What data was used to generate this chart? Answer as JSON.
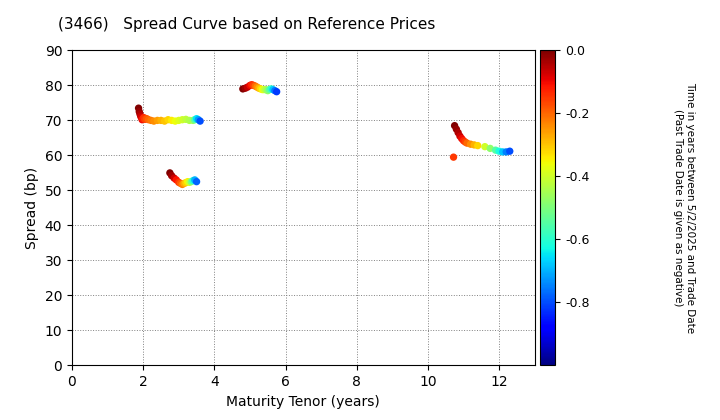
{
  "title": "(3466)   Spread Curve based on Reference Prices",
  "xlabel": "Maturity Tenor (years)",
  "ylabel": "Spread (bp)",
  "colorbar_label": "Time in years between 5/2/2025 and Trade Date\n(Past Trade Date is given as negative)",
  "xlim": [
    0,
    13
  ],
  "ylim": [
    0,
    90
  ],
  "xticks": [
    0,
    2,
    4,
    6,
    8,
    10,
    12
  ],
  "yticks": [
    0,
    10,
    20,
    30,
    40,
    50,
    60,
    70,
    80,
    90
  ],
  "colorbar_min": -1.0,
  "colorbar_max": 0.0,
  "colorbar_ticks": [
    0.0,
    -0.2,
    -0.4,
    -0.6,
    -0.8
  ],
  "clusters": [
    {
      "points": [
        [
          1.87,
          73.5,
          0.0
        ],
        [
          1.89,
          72.5,
          -0.02
        ],
        [
          1.91,
          71.8,
          -0.04
        ],
        [
          1.93,
          71.2,
          -0.06
        ],
        [
          1.95,
          70.8,
          -0.08
        ],
        [
          1.97,
          70.2,
          -0.1
        ],
        [
          1.99,
          70.5,
          -0.12
        ],
        [
          2.02,
          70.8,
          -0.14
        ],
        [
          2.05,
          70.3,
          -0.16
        ],
        [
          2.1,
          70.5,
          -0.18
        ],
        [
          2.15,
          70.2,
          -0.2
        ],
        [
          2.22,
          70.0,
          -0.22
        ],
        [
          2.3,
          69.8,
          -0.24
        ],
        [
          2.4,
          70.0,
          -0.26
        ],
        [
          2.5,
          70.0,
          -0.28
        ],
        [
          2.6,
          69.8,
          -0.3
        ],
        [
          2.7,
          70.2,
          -0.32
        ],
        [
          2.8,
          70.0,
          -0.34
        ],
        [
          2.9,
          69.8,
          -0.36
        ],
        [
          3.0,
          70.0,
          -0.38
        ],
        [
          3.1,
          70.2,
          -0.4
        ],
        [
          3.2,
          70.3,
          -0.42
        ],
        [
          3.3,
          70.0,
          -0.44
        ],
        [
          3.4,
          70.0,
          -0.46
        ],
        [
          3.45,
          70.2,
          -0.55
        ],
        [
          3.5,
          70.5,
          -0.65
        ],
        [
          3.55,
          70.2,
          -0.72
        ],
        [
          3.6,
          69.8,
          -0.8
        ]
      ]
    },
    {
      "points": [
        [
          2.75,
          55.0,
          0.0
        ],
        [
          2.8,
          54.2,
          -0.03
        ],
        [
          2.87,
          53.5,
          -0.07
        ],
        [
          2.93,
          53.0,
          -0.11
        ],
        [
          3.0,
          52.3,
          -0.15
        ],
        [
          3.05,
          52.0,
          -0.19
        ],
        [
          3.1,
          51.7,
          -0.23
        ],
        [
          3.15,
          52.0,
          -0.27
        ],
        [
          3.2,
          52.2,
          -0.31
        ],
        [
          3.25,
          52.5,
          -0.35
        ],
        [
          3.3,
          52.3,
          -0.4
        ],
        [
          3.35,
          52.5,
          -0.5
        ],
        [
          3.4,
          52.8,
          -0.6
        ],
        [
          3.45,
          53.0,
          -0.7
        ],
        [
          3.5,
          52.5,
          -0.78
        ]
      ]
    },
    {
      "points": [
        [
          4.8,
          79.0,
          0.0
        ],
        [
          4.87,
          79.2,
          -0.03
        ],
        [
          4.93,
          79.5,
          -0.06
        ],
        [
          5.0,
          80.0,
          -0.1
        ],
        [
          5.05,
          80.2,
          -0.13
        ],
        [
          5.1,
          80.0,
          -0.16
        ],
        [
          5.15,
          79.8,
          -0.2
        ],
        [
          5.2,
          79.5,
          -0.24
        ],
        [
          5.25,
          79.2,
          -0.28
        ],
        [
          5.3,
          79.0,
          -0.32
        ],
        [
          5.35,
          78.8,
          -0.36
        ],
        [
          5.4,
          78.8,
          -0.4
        ],
        [
          5.45,
          78.8,
          -0.44
        ],
        [
          5.5,
          78.5,
          -0.48
        ],
        [
          5.55,
          78.8,
          -0.54
        ],
        [
          5.6,
          79.0,
          -0.6
        ],
        [
          5.65,
          78.8,
          -0.68
        ],
        [
          5.7,
          78.5,
          -0.76
        ],
        [
          5.75,
          78.2,
          -0.82
        ]
      ]
    },
    {
      "points": [
        [
          10.75,
          68.5,
          0.0
        ],
        [
          10.8,
          67.5,
          -0.02
        ],
        [
          10.85,
          66.5,
          -0.04
        ],
        [
          10.9,
          65.5,
          -0.07
        ],
        [
          10.95,
          64.8,
          -0.1
        ],
        [
          11.0,
          64.2,
          -0.13
        ],
        [
          11.05,
          63.8,
          -0.16
        ],
        [
          11.1,
          63.5,
          -0.2
        ],
        [
          11.2,
          63.2,
          -0.24
        ],
        [
          11.3,
          63.0,
          -0.28
        ],
        [
          11.4,
          62.8,
          -0.32
        ],
        [
          11.6,
          62.5,
          -0.4
        ],
        [
          11.75,
          62.0,
          -0.48
        ],
        [
          11.9,
          61.5,
          -0.55
        ],
        [
          12.0,
          61.2,
          -0.62
        ],
        [
          12.1,
          61.0,
          -0.68
        ],
        [
          12.2,
          61.0,
          -0.75
        ],
        [
          12.3,
          61.2,
          -0.8
        ],
        [
          10.72,
          59.5,
          -0.15
        ]
      ]
    }
  ]
}
